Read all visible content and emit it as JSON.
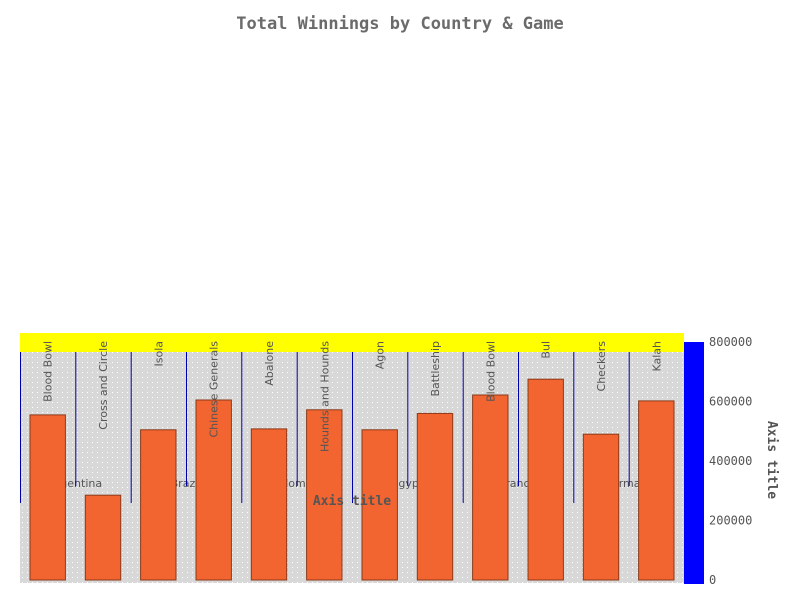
{
  "chart_data": {
    "type": "bar",
    "title": "Total Winnings by Country & Game",
    "groups": [
      {
        "name": "Argentina",
        "categories": [
          "Blood Bowl",
          "Cross and Circle"
        ]
      },
      {
        "name": "Brazil",
        "categories": [
          "Isola",
          "Chinese Generals"
        ]
      },
      {
        "name": "Colombia",
        "categories": [
          "Abalone",
          "Hounds and Hounds"
        ]
      },
      {
        "name": "Egypt",
        "categories": [
          "Agon",
          "Battleship"
        ]
      },
      {
        "name": "France",
        "categories": [
          "Blood Bowl",
          "Bul"
        ]
      },
      {
        "name": "Germany",
        "categories": [
          "Checkers",
          "Kalah"
        ]
      }
    ],
    "categories": [
      "Blood Bowl",
      "Cross and Circle",
      "Isola",
      "Chinese Generals",
      "Abalone",
      "Hounds and Hounds",
      "Agon",
      "Battleship",
      "Blood Bowl",
      "Bul",
      "Checkers",
      "Kalah"
    ],
    "values": [
      555000,
      285000,
      505000,
      605000,
      508000,
      572000,
      505000,
      560000,
      622000,
      675000,
      490000,
      602000
    ],
    "ylim": [
      0,
      800000
    ],
    "yticks": [
      0,
      200000,
      400000,
      600000,
      800000
    ],
    "ylabel": "Axis title",
    "xlabel": "Axis title",
    "grid": true,
    "colors": {
      "bar": "#f26430",
      "bar_border": "#8b3a1a",
      "plot_bg": "#d8d8d8",
      "category_band": "#ffff00",
      "y_axis": "#0000ff",
      "group_divider": "#0000aa",
      "title": "#6b6b6b"
    }
  }
}
